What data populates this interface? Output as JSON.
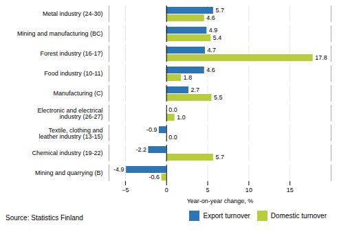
{
  "chart_data": {
    "type": "bar",
    "orientation": "horizontal",
    "categories": [
      "Metal industry (24-30)",
      "Mining and manufacturing (BC)",
      "Forest industry (16-17)",
      "Food industry (10-11)",
      "Manufacturing (C)",
      "Electronic and electrical\nindustry (26-27)",
      "Textile, clothing and\nleather industry (13-15)",
      "Chemical industry (19-22)",
      "Mining and quarrying (B)"
    ],
    "series": [
      {
        "name": "Export turnover",
        "color": "#2E75B6",
        "values": [
          5.7,
          4.9,
          4.7,
          4.6,
          2.7,
          0.0,
          -0.9,
          -2.2,
          -4.9
        ],
        "value_labels": [
          "5.7",
          "4.9",
          "4.7",
          "4.6",
          "2.7",
          "0.0",
          "-0.9",
          "-2.2",
          "-4.9"
        ]
      },
      {
        "name": "Domestic turnover",
        "color": "#B8CC3C",
        "values": [
          4.6,
          5.4,
          17.8,
          1.8,
          5.5,
          1.0,
          0.0,
          5.7,
          -0.6
        ],
        "value_labels": [
          "4.6",
          "5.4",
          "17.8",
          "1.8",
          "5.5",
          "1.0",
          "0.0",
          "5.7",
          "-0.6"
        ]
      }
    ],
    "xlabel": "Year-on-year change, %",
    "xlim": [
      -7,
      20
    ],
    "xticks": [
      -5,
      0,
      5,
      10,
      15
    ],
    "grid": true,
    "legend": "lower right",
    "data_labels": true,
    "source": "Source: Statistics Finland"
  }
}
